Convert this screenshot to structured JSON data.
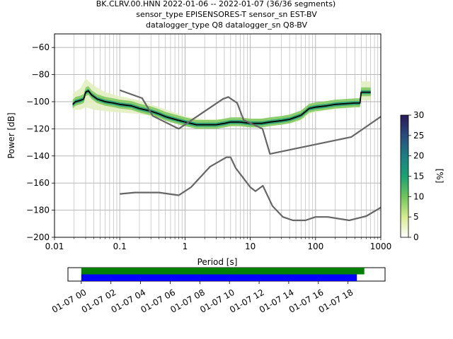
{
  "title_lines": [
    "BK.CLRV.00.HNN   2022-01-06 -- 2022-01-07  (36/36 segments)",
    "sensor_type EPISENSORES-T sensor_sn EST-BV",
    "datalogger_type Q8 datalogger_sn Q8-BV"
  ],
  "chart_data": {
    "type": "line",
    "xlabel": "Period [s]",
    "ylabel": "Power [dB]",
    "xscale": "log",
    "xlim": [
      0.01,
      1000
    ],
    "ylim": [
      -200,
      -50
    ],
    "x_ticks": [
      {
        "value": 0.01,
        "label": "0.01"
      },
      {
        "value": 0.1,
        "label": "0.1"
      },
      {
        "value": 1,
        "label": "1"
      },
      {
        "value": 10,
        "label": "10"
      },
      {
        "value": 100,
        "label": "100"
      },
      {
        "value": 1000,
        "label": "1000"
      }
    ],
    "y_ticks": [
      {
        "value": -60,
        "label": "−60"
      },
      {
        "value": -80,
        "label": "−80"
      },
      {
        "value": -100,
        "label": "−100"
      },
      {
        "value": -120,
        "label": "−120"
      },
      {
        "value": -140,
        "label": "−140"
      },
      {
        "value": -160,
        "label": "−160"
      },
      {
        "value": -180,
        "label": "−180"
      },
      {
        "value": -200,
        "label": "−200"
      }
    ],
    "grid": true,
    "series": [
      {
        "name": "",
        "role": "mode",
        "color": "#000000",
        "points": [
          [
            0.019,
            -102
          ],
          [
            0.021,
            -100
          ],
          [
            0.025,
            -99
          ],
          [
            0.028,
            -98
          ],
          [
            0.03,
            -93
          ],
          [
            0.033,
            -92
          ],
          [
            0.037,
            -95
          ],
          [
            0.045,
            -98
          ],
          [
            0.06,
            -100
          ],
          [
            0.08,
            -101
          ],
          [
            0.1,
            -102
          ],
          [
            0.15,
            -103
          ],
          [
            0.2,
            -105
          ],
          [
            0.3,
            -107
          ],
          [
            0.4,
            -109
          ],
          [
            0.5,
            -111
          ],
          [
            0.7,
            -113
          ],
          [
            1,
            -115
          ],
          [
            1.5,
            -117
          ],
          [
            2,
            -117
          ],
          [
            3,
            -117
          ],
          [
            4,
            -116
          ],
          [
            5,
            -115
          ],
          [
            7,
            -115
          ],
          [
            10,
            -116
          ],
          [
            15,
            -116
          ],
          [
            20,
            -115
          ],
          [
            30,
            -114
          ],
          [
            40,
            -113
          ],
          [
            60,
            -110
          ],
          [
            80,
            -105
          ],
          [
            100,
            -104
          ],
          [
            150,
            -103
          ],
          [
            200,
            -102
          ],
          [
            400,
            -101
          ],
          [
            480,
            -101
          ],
          [
            500,
            -93
          ],
          [
            700,
            -93
          ]
        ]
      },
      {
        "name": "",
        "role": "nlnm",
        "color": "#666666",
        "points": [
          [
            0.1,
            -168
          ],
          [
            0.17,
            -167
          ],
          [
            0.4,
            -167
          ],
          [
            0.8,
            -169
          ],
          [
            1.24,
            -163
          ],
          [
            2.4,
            -148
          ],
          [
            4.3,
            -141
          ],
          [
            5,
            -141
          ],
          [
            6,
            -149
          ],
          [
            10,
            -163
          ],
          [
            12,
            -166
          ],
          [
            15.6,
            -162
          ],
          [
            21.9,
            -177
          ],
          [
            31.6,
            -185
          ],
          [
            45,
            -187.5
          ],
          [
            70,
            -187.5
          ],
          [
            100,
            -185
          ],
          [
            154,
            -185
          ],
          [
            328,
            -187.5
          ],
          [
            600,
            -184.4
          ],
          [
            1000,
            -178
          ]
        ]
      },
      {
        "name": "",
        "role": "nhnm",
        "color": "#666666",
        "points": [
          [
            0.1,
            -91.5
          ],
          [
            0.22,
            -97.4
          ],
          [
            0.32,
            -110.5
          ],
          [
            0.8,
            -120
          ],
          [
            3.8,
            -98
          ],
          [
            4.6,
            -96.5
          ],
          [
            6.3,
            -101
          ],
          [
            7.9,
            -113.5
          ],
          [
            15.4,
            -120
          ],
          [
            20,
            -138.5
          ],
          [
            354.8,
            -126
          ],
          [
            1000,
            -111
          ]
        ]
      }
    ],
    "density_band": {
      "description": "colored probability-density cells around the mode curve",
      "points_upper": [
        [
          0.019,
          -94
        ],
        [
          0.025,
          -90
        ],
        [
          0.03,
          -83
        ],
        [
          0.04,
          -88
        ],
        [
          0.06,
          -93
        ],
        [
          0.1,
          -96
        ],
        [
          0.2,
          -99
        ],
        [
          0.4,
          -104
        ],
        [
          0.7,
          -108
        ],
        [
          1,
          -111
        ],
        [
          2,
          -113
        ],
        [
          5,
          -113
        ],
        [
          10,
          -113
        ],
        [
          20,
          -112
        ],
        [
          40,
          -110
        ],
        [
          60,
          -107
        ],
        [
          80,
          -102
        ],
        [
          150,
          -101
        ],
        [
          480,
          -99
        ],
        [
          500,
          -85
        ],
        [
          700,
          -85
        ]
      ],
      "points_lower": [
        [
          0.019,
          -106
        ],
        [
          0.025,
          -106
        ],
        [
          0.03,
          -104
        ],
        [
          0.04,
          -106
        ],
        [
          0.06,
          -107
        ],
        [
          0.1,
          -108
        ],
        [
          0.2,
          -109
        ],
        [
          0.4,
          -112
        ],
        [
          0.7,
          -115
        ],
        [
          1,
          -118
        ],
        [
          2,
          -119
        ],
        [
          5,
          -118
        ],
        [
          10,
          -118
        ],
        [
          20,
          -117
        ],
        [
          40,
          -116
        ],
        [
          60,
          -114
        ],
        [
          80,
          -109
        ],
        [
          150,
          -106
        ],
        [
          480,
          -104
        ],
        [
          500,
          -99
        ],
        [
          700,
          -99
        ]
      ]
    },
    "colorbar": {
      "label": "[%]",
      "range": [
        0,
        30
      ],
      "ticks": [
        0,
        5,
        10,
        15,
        20,
        25,
        30
      ],
      "colors": [
        "#ffffff",
        "#d6ec8f",
        "#6dc55a",
        "#1aa273",
        "#1d7e84",
        "#284c7d",
        "#2a1959"
      ]
    },
    "timeline": {
      "ticks": [
        "01-07 00",
        "01-07 02",
        "01-07 04",
        "01-07 06",
        "01-07 08",
        "01-07 10",
        "01-07 12",
        "01-07 14",
        "01-07 16",
        "01-07 18"
      ],
      "start_hour": 0,
      "end_hour": 20,
      "axis_start_hour": -0.9,
      "axis_end_hour": 20.5,
      "bars": [
        {
          "name": "",
          "color": "#008000",
          "start_hour": 0,
          "end_hour": 19.1
        },
        {
          "name": "",
          "color": "#0000ff",
          "start_hour": 0,
          "end_hour": 18.6
        }
      ]
    }
  }
}
